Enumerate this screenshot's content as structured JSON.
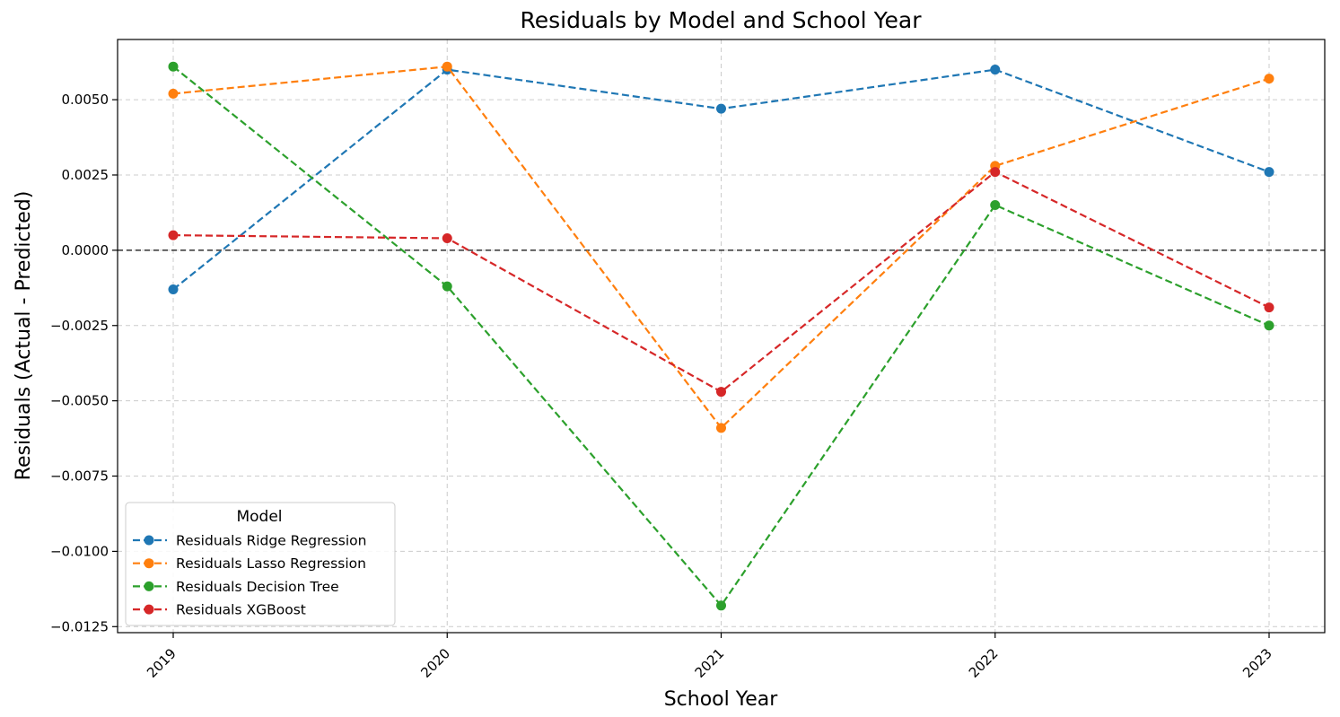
{
  "chart_data": {
    "type": "line",
    "title": "Residuals by Model and School Year",
    "xlabel": "School Year",
    "ylabel": "Residuals (Actual - Predicted)",
    "categories": [
      "2019",
      "2020",
      "2021",
      "2022",
      "2023"
    ],
    "ylim": [
      -0.0127,
      0.007
    ],
    "yticks": [
      -0.0125,
      -0.01,
      -0.0075,
      -0.005,
      -0.0025,
      0.0,
      0.0025,
      0.005
    ],
    "ytick_labels": [
      "−0.0125",
      "−0.0100",
      "−0.0075",
      "−0.0050",
      "−0.0025",
      "0.0000",
      "0.0025",
      "0.0050"
    ],
    "grid": true,
    "reference_line": {
      "y": 0.0,
      "style": "dashed",
      "color": "#333333"
    },
    "legend": {
      "title": "Model",
      "placement": "lower-left"
    },
    "series": [
      {
        "name": "Residuals Ridge Regression",
        "color": "#1f77b4",
        "values": [
          -0.0013,
          0.006,
          0.0047,
          0.006,
          0.0026
        ]
      },
      {
        "name": "Residuals Lasso Regression",
        "color": "#ff7f0e",
        "values": [
          0.0052,
          0.0061,
          -0.0059,
          0.0028,
          0.0057
        ]
      },
      {
        "name": "Residuals Decision Tree",
        "color": "#2ca02c",
        "values": [
          0.0061,
          -0.0012,
          -0.0118,
          0.0015,
          -0.0025
        ]
      },
      {
        "name": "Residuals XGBoost",
        "color": "#d62728",
        "values": [
          0.0005,
          0.0004,
          -0.0047,
          0.0026,
          -0.0019
        ]
      }
    ]
  }
}
